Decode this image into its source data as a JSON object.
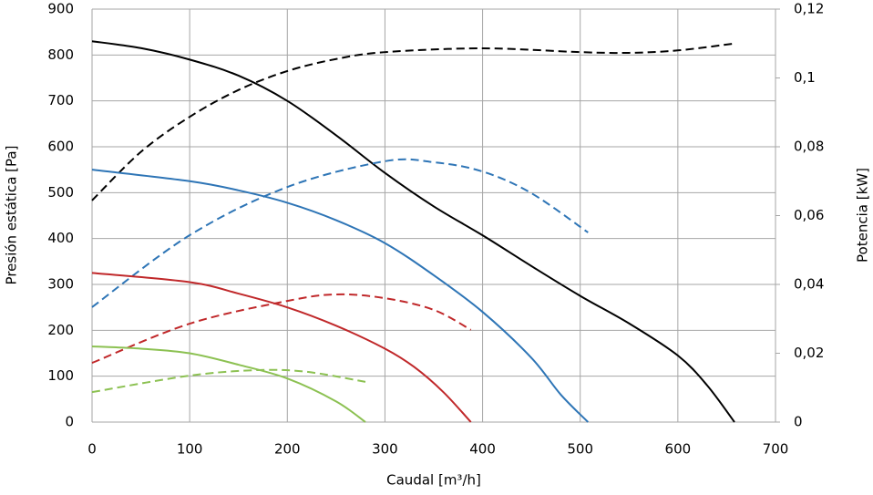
{
  "chart_data": {
    "type": "line",
    "xlabel": "Caudal [m³/h]",
    "ylabel": "Presión estática [Pa]",
    "y2label": "Potencia [kW]",
    "xlim": [
      0,
      700
    ],
    "xticks": [
      0,
      100,
      200,
      300,
      400,
      500,
      600,
      700
    ],
    "ylim": [
      0,
      900
    ],
    "yticks": [
      0,
      100,
      200,
      300,
      400,
      500,
      600,
      700,
      800,
      900
    ],
    "y2lim": [
      0,
      0.12
    ],
    "y2ticks": [
      0,
      {
        "value": 0.02,
        "label": "0,02"
      },
      {
        "value": 0.04,
        "label": "0,04"
      },
      {
        "value": 0.06,
        "label": "0,06"
      },
      {
        "value": 0.08,
        "label": "0,08"
      },
      {
        "value": 0.1,
        "label": "0,1"
      },
      {
        "value": 0.12,
        "label": "0,12"
      }
    ],
    "grid": true,
    "series": [
      {
        "color": "#000000",
        "dash": false,
        "x": [
          0,
          50,
          100,
          150,
          200,
          250,
          300,
          350,
          400,
          450,
          500,
          550,
          600,
          630,
          658
        ],
        "values": [
          830,
          815,
          790,
          755,
          700,
          625,
          543,
          470,
          407,
          340,
          275,
          215,
          145,
          80,
          0
        ]
      },
      {
        "color": "#000000",
        "dash": true,
        "axis": "y2",
        "x": [
          0,
          50,
          100,
          150,
          200,
          250,
          300,
          400,
          500,
          550,
          600,
          658
        ],
        "values": [
          0.0644,
          0.0785,
          0.0887,
          0.0965,
          0.102,
          0.1055,
          0.1075,
          0.1086,
          0.1075,
          0.1073,
          0.108,
          0.11
        ]
      },
      {
        "color": "#2e75b6",
        "dash": false,
        "x": [
          0,
          100,
          150,
          200,
          250,
          300,
          350,
          400,
          450,
          480,
          508
        ],
        "values": [
          550,
          525,
          505,
          478,
          440,
          390,
          320,
          240,
          140,
          60,
          0
        ]
      },
      {
        "color": "#2e75b6",
        "dash": true,
        "axis": "y2",
        "x": [
          0,
          100,
          200,
          300,
          350,
          400,
          450,
          508
        ],
        "values": [
          0.0334,
          0.0543,
          0.0683,
          0.0758,
          0.0755,
          0.0728,
          0.0665,
          0.0551
        ]
      },
      {
        "color": "#c0282a",
        "dash": false,
        "x": [
          0,
          100,
          150,
          200,
          250,
          300,
          330,
          360,
          388
        ],
        "values": [
          325,
          305,
          280,
          250,
          210,
          160,
          120,
          65,
          0
        ]
      },
      {
        "color": "#c0282a",
        "dash": true,
        "axis": "y2",
        "x": [
          0,
          100,
          200,
          250,
          300,
          350,
          388
        ],
        "values": [
          0.0172,
          0.0286,
          0.0352,
          0.0371,
          0.036,
          0.0326,
          0.0268
        ]
      },
      {
        "color": "#8cc152",
        "dash": false,
        "x": [
          0,
          50,
          100,
          150,
          200,
          250,
          280
        ],
        "values": [
          165,
          160,
          150,
          125,
          95,
          45,
          0
        ]
      },
      {
        "color": "#8cc152",
        "dash": true,
        "axis": "y2",
        "x": [
          0,
          100,
          170,
          220,
          280
        ],
        "values": [
          0.0087,
          0.0135,
          0.0151,
          0.0146,
          0.0117
        ]
      }
    ]
  }
}
